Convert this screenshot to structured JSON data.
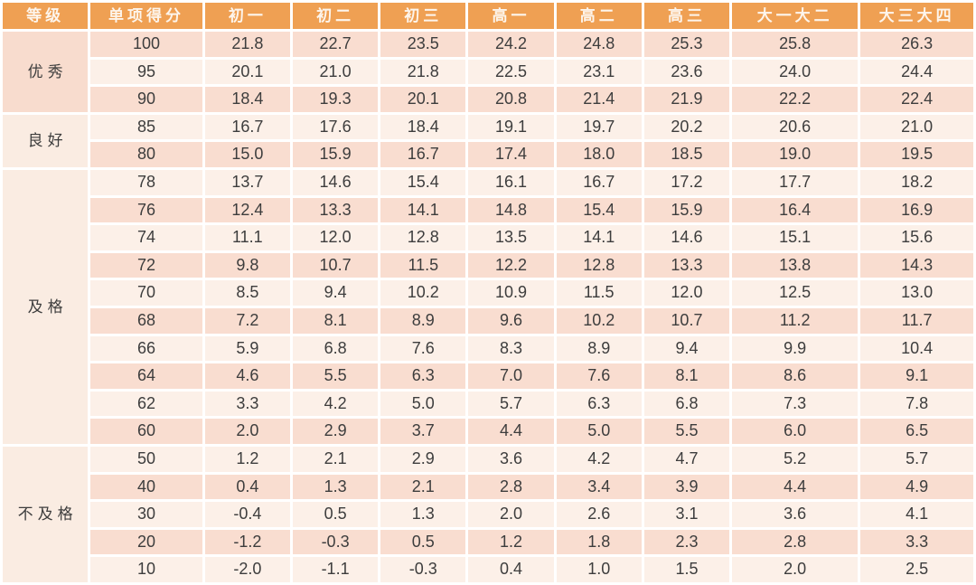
{
  "colors": {
    "header_bg": "#efa053",
    "header_text": "#fdf5ec",
    "row_pink": "#f9ddd0",
    "row_cream": "#fcf0e8",
    "grade_block_pink": "#f8dcce",
    "grade_block_cream": "#faece2",
    "cell_text": "#3d3d3d"
  },
  "chart_data": {
    "type": "table",
    "columns": [
      "等级",
      "单项得分",
      "初一",
      "初二",
      "初三",
      "高一",
      "高二",
      "高三",
      "大一大二",
      "大三大四"
    ],
    "sections": [
      {
        "grade": "优秀",
        "rows": [
          {
            "score": "100",
            "values": [
              "21.8",
              "22.7",
              "23.5",
              "24.2",
              "24.8",
              "25.3",
              "25.8",
              "26.3"
            ]
          },
          {
            "score": "95",
            "values": [
              "20.1",
              "21.0",
              "21.8",
              "22.5",
              "23.1",
              "23.6",
              "24.0",
              "24.4"
            ]
          },
          {
            "score": "90",
            "values": [
              "18.4",
              "19.3",
              "20.1",
              "20.8",
              "21.4",
              "21.9",
              "22.2",
              "22.4"
            ]
          }
        ]
      },
      {
        "grade": "良好",
        "rows": [
          {
            "score": "85",
            "values": [
              "16.7",
              "17.6",
              "18.4",
              "19.1",
              "19.7",
              "20.2",
              "20.6",
              "21.0"
            ]
          },
          {
            "score": "80",
            "values": [
              "15.0",
              "15.9",
              "16.7",
              "17.4",
              "18.0",
              "18.5",
              "19.0",
              "19.5"
            ]
          }
        ]
      },
      {
        "grade": "及格",
        "rows": [
          {
            "score": "78",
            "values": [
              "13.7",
              "14.6",
              "15.4",
              "16.1",
              "16.7",
              "17.2",
              "17.7",
              "18.2"
            ]
          },
          {
            "score": "76",
            "values": [
              "12.4",
              "13.3",
              "14.1",
              "14.8",
              "15.4",
              "15.9",
              "16.4",
              "16.9"
            ]
          },
          {
            "score": "74",
            "values": [
              "11.1",
              "12.0",
              "12.8",
              "13.5",
              "14.1",
              "14.6",
              "15.1",
              "15.6"
            ]
          },
          {
            "score": "72",
            "values": [
              "9.8",
              "10.7",
              "11.5",
              "12.2",
              "12.8",
              "13.3",
              "13.8",
              "14.3"
            ]
          },
          {
            "score": "70",
            "values": [
              "8.5",
              "9.4",
              "10.2",
              "10.9",
              "11.5",
              "12.0",
              "12.5",
              "13.0"
            ]
          },
          {
            "score": "68",
            "values": [
              "7.2",
              "8.1",
              "8.9",
              "9.6",
              "10.2",
              "10.7",
              "11.2",
              "11.7"
            ]
          },
          {
            "score": "66",
            "values": [
              "5.9",
              "6.8",
              "7.6",
              "8.3",
              "8.9",
              "9.4",
              "9.9",
              "10.4"
            ]
          },
          {
            "score": "64",
            "values": [
              "4.6",
              "5.5",
              "6.3",
              "7.0",
              "7.6",
              "8.1",
              "8.6",
              "9.1"
            ]
          },
          {
            "score": "62",
            "values": [
              "3.3",
              "4.2",
              "5.0",
              "5.7",
              "6.3",
              "6.8",
              "7.3",
              "7.8"
            ]
          },
          {
            "score": "60",
            "values": [
              "2.0",
              "2.9",
              "3.7",
              "4.4",
              "5.0",
              "5.5",
              "6.0",
              "6.5"
            ]
          }
        ]
      },
      {
        "grade": "不及格",
        "rows": [
          {
            "score": "50",
            "values": [
              "1.2",
              "2.1",
              "2.9",
              "3.6",
              "4.2",
              "4.7",
              "5.2",
              "5.7"
            ]
          },
          {
            "score": "40",
            "values": [
              "0.4",
              "1.3",
              "2.1",
              "2.8",
              "3.4",
              "3.9",
              "4.4",
              "4.9"
            ]
          },
          {
            "score": "30",
            "values": [
              "-0.4",
              "0.5",
              "1.3",
              "2.0",
              "2.6",
              "3.1",
              "3.6",
              "4.1"
            ]
          },
          {
            "score": "20",
            "values": [
              "-1.2",
              "-0.3",
              "0.5",
              "1.2",
              "1.8",
              "2.3",
              "2.8",
              "3.3"
            ]
          },
          {
            "score": "10",
            "values": [
              "-2.0",
              "-1.1",
              "-0.3",
              "0.4",
              "1.0",
              "1.5",
              "2.0",
              "2.5"
            ]
          }
        ]
      }
    ]
  }
}
